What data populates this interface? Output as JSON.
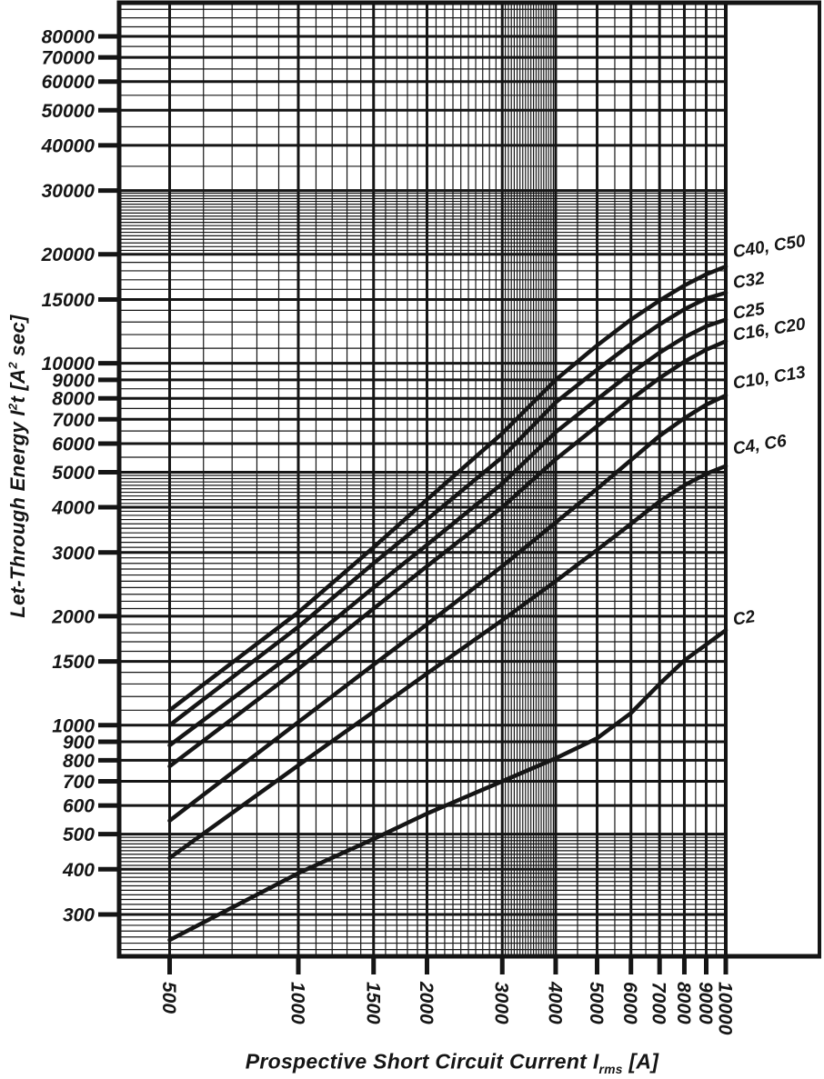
{
  "page": {
    "background": "#ffffff",
    "ink_color": "#151515"
  },
  "x_axis": {
    "title_main": "Prospective Short Circuit Current I",
    "title_sub": "rms",
    "title_end": " [A]",
    "tick_labels": [
      "500",
      "1000",
      "1500",
      "2000",
      "3000",
      "4000",
      "5000",
      "6000",
      "7000",
      "8000",
      "9000",
      "10000"
    ]
  },
  "y_axis": {
    "title_p1": "Let-Through Energy I",
    "title_sup1": "2",
    "title_p2": "t [A",
    "title_sup2": "2",
    "title_p3": " sec]",
    "tick_labels": [
      "300",
      "400",
      "500",
      "600",
      "700",
      "800",
      "900",
      "1000",
      "1500",
      "2000",
      "3000",
      "4000",
      "5000",
      "6000",
      "7000",
      "8000",
      "9000",
      "10000",
      "15000",
      "20000",
      "30000",
      "40000",
      "50000",
      "60000",
      "70000",
      "80000"
    ]
  },
  "chart_data": {
    "type": "line",
    "title": "",
    "xlabel": "Prospective Short Circuit Current Irms [A]",
    "ylabel": "Let-Through Energy I2t [A2 sec]",
    "x_scale": "log",
    "y_scale": "log",
    "xlim": [
      380,
      10000
    ],
    "ylim": [
      230,
      99000
    ],
    "grid": "on",
    "legend_position": "right-of-curves",
    "x_ticks": [
      500,
      1000,
      1500,
      2000,
      3000,
      4000,
      5000,
      6000,
      7000,
      8000,
      9000,
      10000
    ],
    "y_ticks": [
      300,
      400,
      500,
      600,
      700,
      800,
      900,
      1000,
      1500,
      2000,
      3000,
      4000,
      5000,
      6000,
      7000,
      8000,
      9000,
      10000,
      15000,
      20000,
      30000,
      40000,
      50000,
      60000,
      70000,
      80000
    ],
    "x_minor_rules": [
      [
        500,
        1000,
        100
      ],
      [
        1000,
        3000,
        100
      ],
      [
        3000,
        4000,
        50
      ],
      [
        4000,
        10000,
        500
      ]
    ],
    "y_minor_rules": [
      [
        240,
        500,
        10
      ],
      [
        1000,
        5000,
        100
      ],
      [
        5000,
        10000,
        500
      ],
      [
        10000,
        20000,
        1000
      ],
      [
        20000,
        30000,
        500
      ],
      [
        30000,
        50000,
        5000
      ],
      [
        50000,
        95000,
        5000
      ]
    ],
    "x": [
      500,
      1000,
      1500,
      2000,
      3000,
      4000,
      5000,
      6000,
      7000,
      8000,
      9000,
      10000
    ],
    "series": [
      {
        "name": "C40, C50",
        "label_value": 19600,
        "values": [
          1100,
          2050,
          3100,
          4200,
          6400,
          9000,
          11200,
          13200,
          14900,
          16400,
          17600,
          18500
        ]
      },
      {
        "name": "C32",
        "label_value": 16100,
        "values": [
          1000,
          1870,
          2800,
          3700,
          5500,
          7800,
          9600,
          11300,
          12800,
          14100,
          15100,
          15650
        ]
      },
      {
        "name": "C25",
        "label_value": 13250,
        "values": [
          880,
          1620,
          2400,
          3150,
          4650,
          6450,
          7950,
          9400,
          10700,
          11800,
          12650,
          13200
        ]
      },
      {
        "name": "C16, C20",
        "label_value": 11550,
        "values": [
          770,
          1430,
          2100,
          2750,
          4000,
          5430,
          6700,
          7950,
          9100,
          10100,
          10900,
          11500
        ]
      },
      {
        "name": "C10, C13",
        "label_value": 8500,
        "values": [
          545,
          1020,
          1470,
          1900,
          2750,
          3630,
          4500,
          5400,
          6300,
          7050,
          7680,
          8150
        ]
      },
      {
        "name": "C4, C6",
        "label_value": 5600,
        "values": [
          430,
          775,
          1090,
          1390,
          1950,
          2500,
          3050,
          3600,
          4150,
          4600,
          4950,
          5200
        ]
      },
      {
        "name": "C2",
        "label_value": 1890,
        "values": [
          255,
          390,
          485,
          570,
          700,
          810,
          920,
          1080,
          1300,
          1510,
          1670,
          1830
        ]
      }
    ]
  }
}
